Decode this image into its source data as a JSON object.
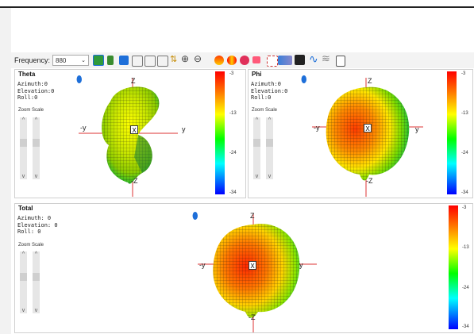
{
  "toolbar": {
    "frequency_label": "Frequency:",
    "frequency_value": "880",
    "icons": [
      "battery-icon",
      "battery-icon",
      "view-icon",
      "view-icon",
      "view-icon",
      "rotate-icon",
      "zoom-in-icon",
      "zoom-out-icon",
      "pattern-icon",
      "pattern-icon",
      "pattern-icon",
      "pattern-icon",
      "pattern-icon",
      "pattern-icon",
      "camera-icon",
      "wave-icon",
      "wave-icon",
      "notes-icon"
    ]
  },
  "panels": {
    "theta": {
      "title": "Theta",
      "azimuth": "Azimuth:0",
      "elevation": "Elevation:0",
      "roll": "Roll:0",
      "zoom_label": "Zoom Scale"
    },
    "phi": {
      "title": "Phi",
      "azimuth": "Azimuth:0",
      "elevation": "Elevation:0",
      "roll": "Roll:0",
      "zoom_label": "Zoom Scale"
    },
    "total": {
      "title": "Total",
      "azimuth": "Azimuth: 0",
      "elevation": "Elevation: 0",
      "roll": "Roll: 0",
      "zoom_label": "Zoom Scale"
    }
  },
  "axes": {
    "z": "Z",
    "neg_z": "-Z",
    "y": "y",
    "neg_y": "-y",
    "x": "X"
  },
  "colorbar_ticks": [
    "-3",
    "-13",
    "-24",
    "-34"
  ],
  "colors": {
    "accent": "#1e6fd9",
    "toolbar_bg": "#f3f3f3"
  }
}
